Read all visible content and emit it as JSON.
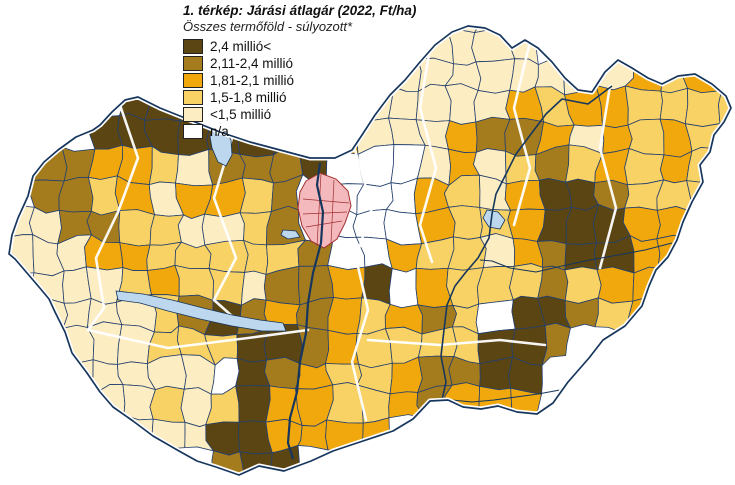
{
  "title": "1. térkép: Járási átlagár (2022, Ft/ha)",
  "subtitle": "Összes termőföld - súlyozott*",
  "legend": {
    "items": [
      {
        "key": "D",
        "label": "2,4 millió<",
        "color": "#5a4513"
      },
      {
        "key": "M",
        "label": "2,11-2,4 millió",
        "color": "#a47c1e"
      },
      {
        "key": "G",
        "label": "1,81-2,1 millió",
        "color": "#f0a80d"
      },
      {
        "key": "Y",
        "label": "1,5-1,8 millió",
        "color": "#f8d264"
      },
      {
        "key": "C",
        "label": "<1,5 millió",
        "color": "#fcedc2"
      },
      {
        "key": "W",
        "label": "n/a",
        "color": "#ffffff"
      }
    ]
  },
  "chart_data": {
    "type": "choropleth-map",
    "title": "1. térkép: Járási átlagár (2022, Ft/ha)",
    "subtitle": "Összes termőföld - súlyozott*",
    "unit": "Ft/ha",
    "categories": [
      "2,4 millió<",
      "2,11-2,4 millió",
      "1,81-2,1 millió",
      "1,5-1,8 millió",
      "<1,5 millió",
      "n/a"
    ],
    "legend_position": "top-left"
  },
  "map": {
    "line_color": "#25406e",
    "border_color": "#17365d",
    "casing_color": "#ffffff",
    "county_line_color": "#ffffff",
    "water_color": "#bdd7ee",
    "outline": [
      [
        9,
        254
      ],
      [
        12,
        235
      ],
      [
        18,
        218
      ],
      [
        28,
        196
      ],
      [
        33,
        176
      ],
      [
        44,
        162
      ],
      [
        58,
        150
      ],
      [
        76,
        137
      ],
      [
        93,
        130
      ],
      [
        100,
        125
      ],
      [
        112,
        112
      ],
      [
        125,
        100
      ],
      [
        138,
        97
      ],
      [
        160,
        108
      ],
      [
        190,
        120
      ],
      [
        220,
        132
      ],
      [
        250,
        142
      ],
      [
        280,
        150
      ],
      [
        310,
        158
      ],
      [
        335,
        158
      ],
      [
        352,
        150
      ],
      [
        362,
        135
      ],
      [
        375,
        115
      ],
      [
        390,
        95
      ],
      [
        405,
        80
      ],
      [
        420,
        62
      ],
      [
        435,
        45
      ],
      [
        452,
        32
      ],
      [
        468,
        26
      ],
      [
        485,
        28
      ],
      [
        500,
        35
      ],
      [
        512,
        48
      ],
      [
        525,
        40
      ],
      [
        538,
        48
      ],
      [
        552,
        62
      ],
      [
        565,
        78
      ],
      [
        578,
        90
      ],
      [
        592,
        92
      ],
      [
        605,
        72
      ],
      [
        618,
        60
      ],
      [
        632,
        68
      ],
      [
        648,
        78
      ],
      [
        662,
        84
      ],
      [
        678,
        76
      ],
      [
        695,
        74
      ],
      [
        712,
        84
      ],
      [
        726,
        96
      ],
      [
        731,
        108
      ],
      [
        724,
        122
      ],
      [
        714,
        135
      ],
      [
        710,
        152
      ],
      [
        700,
        165
      ],
      [
        703,
        182
      ],
      [
        692,
        202
      ],
      [
        683,
        222
      ],
      [
        677,
        240
      ],
      [
        668,
        257
      ],
      [
        656,
        270
      ],
      [
        649,
        286
      ],
      [
        642,
        306
      ],
      [
        625,
        326
      ],
      [
        603,
        340
      ],
      [
        589,
        358
      ],
      [
        568,
        382
      ],
      [
        553,
        403
      ],
      [
        537,
        414
      ],
      [
        517,
        412
      ],
      [
        498,
        406
      ],
      [
        481,
        409
      ],
      [
        463,
        407
      ],
      [
        448,
        400
      ],
      [
        430,
        401
      ],
      [
        413,
        419
      ],
      [
        393,
        431
      ],
      [
        363,
        441
      ],
      [
        333,
        451
      ],
      [
        311,
        461
      ],
      [
        284,
        471
      ],
      [
        259,
        466
      ],
      [
        239,
        475
      ],
      [
        216,
        467
      ],
      [
        197,
        461
      ],
      [
        179,
        451
      ],
      [
        153,
        436
      ],
      [
        133,
        421
      ],
      [
        113,
        407
      ],
      [
        100,
        392
      ],
      [
        87,
        373
      ],
      [
        72,
        353
      ],
      [
        65,
        332
      ],
      [
        55,
        312
      ],
      [
        49,
        299
      ],
      [
        39,
        287
      ],
      [
        27,
        273
      ],
      [
        15,
        259
      ]
    ],
    "grid": {
      "cell_size": 30,
      "jitter": 11,
      "rows": [
        "...............CC........",
        "..............CCCC..C....",
        ".............CCCCCCCCGYGG",
        "....DDD.....CCCCCGYGGYYYY",
        "...DDDDDDDDGCCCGMMGCGYGYY",
        ".MMGGYCMMMDWWWCGCYMYGYGY.",
        ".MMYGCGGYMWWWWGYCGDDMYYY.",
        "CCMMYYCCYMWWWWGYYGDDDGG..",
        "CCCGGYYYYYMWWGYYCGMDDGG..",
        ".CCCYGYYCMMGDWGYYYMYGGY..",
        ".CCCCYMDMGMGYGMYWDDMYG...",
        ".CCCCYYYDDMGYYYYDDM......",
        "..CCCCCWDMGYYGMMDD.......",
        "...CCYCYDGGYYGMGGG.......",
        "....CCCDDGGGG............",
        ".......MDD..............."
      ]
    },
    "county_lines": [
      [
        [
          120,
          105
        ],
        [
          138,
          158
        ],
        [
          118,
          212
        ],
        [
          96,
          258
        ],
        [
          104,
          308
        ],
        [
          88,
          330
        ]
      ],
      [
        [
          232,
          138
        ],
        [
          214,
          198
        ],
        [
          236,
          258
        ],
        [
          214,
          300
        ],
        [
          232,
          316
        ]
      ],
      [
        [
          355,
          150
        ],
        [
          372,
          208
        ],
        [
          356,
          258
        ],
        [
          368,
          310
        ],
        [
          352,
          362
        ],
        [
          366,
          420
        ]
      ],
      [
        [
          430,
          48
        ],
        [
          420,
          108
        ],
        [
          436,
          168
        ],
        [
          420,
          225
        ],
        [
          432,
          262
        ]
      ],
      [
        [
          530,
          42
        ],
        [
          514,
          108
        ],
        [
          530,
          168
        ],
        [
          514,
          225
        ]
      ],
      [
        [
          610,
          86
        ],
        [
          600,
          148
        ],
        [
          616,
          208
        ],
        [
          600,
          268
        ]
      ],
      [
        [
          88,
          330
        ],
        [
          168,
          348
        ],
        [
          248,
          338
        ],
        [
          308,
          330
        ]
      ],
      [
        [
          368,
          340
        ],
        [
          440,
          345
        ],
        [
          500,
          340
        ],
        [
          545,
          345
        ]
      ]
    ],
    "lakes": [
      {
        "name": "balaton",
        "points": [
          [
            116,
            291
          ],
          [
            143,
            294
          ],
          [
            172,
            300
          ],
          [
            203,
            308
          ],
          [
            232,
            315
          ],
          [
            260,
            320
          ],
          [
            283,
            323
          ],
          [
            286,
            331
          ],
          [
            262,
            331
          ],
          [
            232,
            326
          ],
          [
            200,
            319
          ],
          [
            168,
            311
          ],
          [
            140,
            303
          ],
          [
            118,
            300
          ]
        ]
      },
      {
        "name": "ferto",
        "points": [
          [
            213,
            130
          ],
          [
            224,
            128
          ],
          [
            231,
            140
          ],
          [
            232,
            155
          ],
          [
            226,
            166
          ],
          [
            218,
            162
          ],
          [
            212,
            148
          ],
          [
            210,
            137
          ]
        ]
      },
      {
        "name": "tisza-to",
        "points": [
          [
            487,
            210
          ],
          [
            498,
            212
          ],
          [
            505,
            220
          ],
          [
            500,
            229
          ],
          [
            489,
            227
          ],
          [
            483,
            218
          ]
        ]
      },
      {
        "name": "velence",
        "points": [
          [
            283,
            230
          ],
          [
            296,
            231
          ],
          [
            300,
            237
          ],
          [
            288,
            239
          ],
          [
            281,
            235
          ]
        ]
      }
    ],
    "rivers": [
      {
        "name": "danube",
        "width": 2.2,
        "points": [
          [
            320,
            163
          ],
          [
            317,
            185
          ],
          [
            323,
            212
          ],
          [
            321,
            243
          ],
          [
            313,
            273
          ],
          [
            308,
            303
          ],
          [
            306,
            333
          ],
          [
            300,
            362
          ],
          [
            297,
            392
          ],
          [
            290,
            418
          ],
          [
            288,
            443
          ],
          [
            293,
            459
          ]
        ]
      },
      {
        "name": "tisza",
        "width": 1.6,
        "points": [
          [
            612,
            86
          ],
          [
            588,
            104
          ],
          [
            562,
            99
          ],
          [
            546,
            114
          ],
          [
            531,
            134
          ],
          [
            516,
            154
          ],
          [
            506,
            174
          ],
          [
            496,
            194
          ],
          [
            492,
            214
          ],
          [
            489,
            238
          ],
          [
            478,
            258
          ],
          [
            466,
            272
          ],
          [
            455,
            286
          ],
          [
            447,
            305
          ],
          [
            444,
            330
          ],
          [
            441,
            356
          ],
          [
            446,
            382
          ],
          [
            441,
            404
          ]
        ]
      },
      {
        "name": "koros",
        "width": 1.1,
        "points": [
          [
            672,
            243
          ],
          [
            645,
            250
          ],
          [
            618,
            255
          ],
          [
            590,
            260
          ],
          [
            562,
            266
          ],
          [
            536,
            272
          ],
          [
            510,
            268
          ],
          [
            492,
            261
          ],
          [
            480,
            260
          ]
        ]
      },
      {
        "name": "maros",
        "width": 1.1,
        "points": [
          [
            560,
            390
          ],
          [
            538,
            394
          ],
          [
            516,
            397
          ],
          [
            494,
            400
          ],
          [
            472,
            402
          ],
          [
            452,
            400
          ]
        ]
      }
    ],
    "budapest": {
      "fill": "#f4b9bd",
      "stroke": "#a03030",
      "outline": [
        [
          306,
          181
        ],
        [
          320,
          173
        ],
        [
          336,
          179
        ],
        [
          348,
          191
        ],
        [
          351,
          206
        ],
        [
          345,
          223
        ],
        [
          337,
          239
        ],
        [
          324,
          248
        ],
        [
          311,
          241
        ],
        [
          302,
          226
        ],
        [
          298,
          208
        ],
        [
          300,
          192
        ]
      ],
      "inner_lines": [
        [
          [
            303,
            199
          ],
          [
            349,
            203
          ]
        ],
        [
          [
            306,
            227
          ],
          [
            342,
            221
          ]
        ],
        [
          [
            321,
            174
          ],
          [
            317,
            246
          ]
        ],
        [
          [
            334,
            180
          ],
          [
            331,
            243
          ]
        ],
        [
          [
            303,
            214
          ],
          [
            347,
            212
          ]
        ]
      ]
    }
  }
}
